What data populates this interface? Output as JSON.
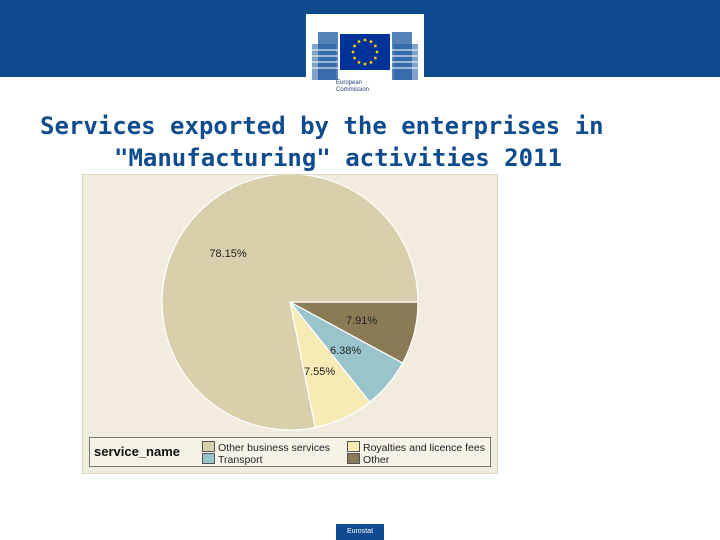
{
  "header": {
    "logo_line1": "European",
    "logo_line2": "Commission"
  },
  "title": {
    "line1": "Services exported by the enterprises in",
    "line2": "\"Manufacturing\" activities 2011"
  },
  "colors": {
    "header_blue": "#0f4c8f",
    "other_business_services": "#d8d0ac",
    "transport": "#9ac4cc",
    "royalties": "#f8eab5",
    "other": "#8a7a55"
  },
  "chart_data": {
    "type": "pie",
    "legend_title": "service_name",
    "legend_position": "bottom",
    "slices": [
      {
        "name": "Other business services",
        "value": 78.15,
        "label": "78.15%",
        "color": "#d8d0ac"
      },
      {
        "name": "Royalties and licence fees",
        "value": 7.55,
        "label": "7.55%",
        "color": "#f8eab5"
      },
      {
        "name": "Transport",
        "value": 6.38,
        "label": "6.38%",
        "color": "#9ac4cc"
      },
      {
        "name": "Other",
        "value": 7.91,
        "label": "7.91%",
        "color": "#8a7a55"
      }
    ]
  },
  "footer": {
    "badge": "Eurostat"
  }
}
